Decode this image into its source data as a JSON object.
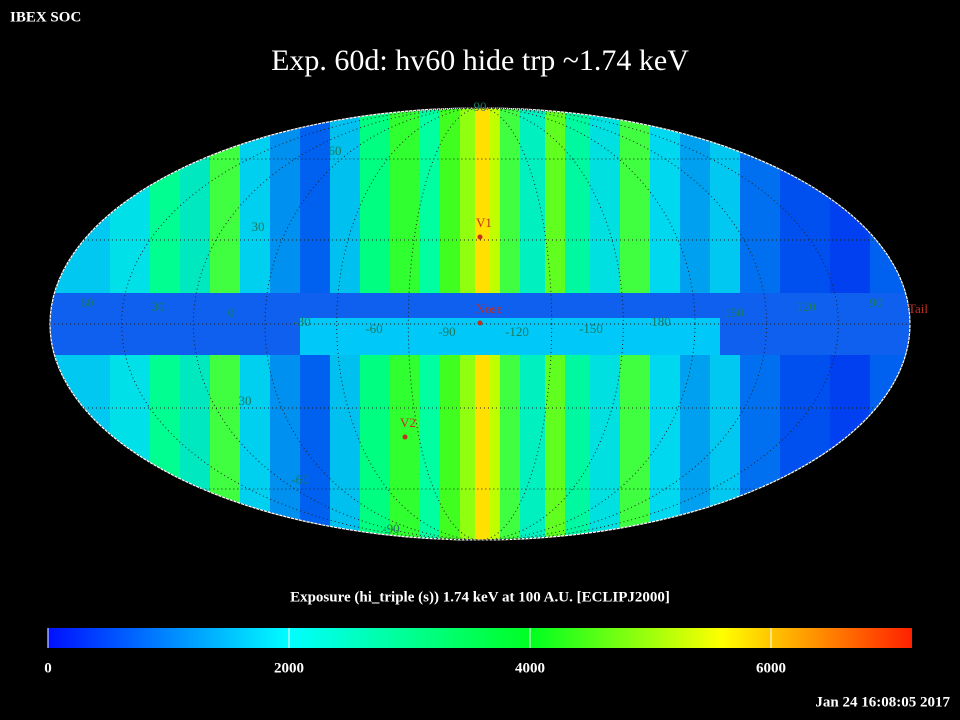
{
  "header": {
    "org": "IBEX SOC",
    "title": "Exp.   60d: hv60 hide trp ~1.74 keV",
    "timestamp": "Jan 24 16:08:05 2017"
  },
  "map": {
    "grid_labels": [
      "90",
      "60",
      "30",
      "60",
      "30",
      "0",
      "-30",
      "-60",
      "-90",
      "-120",
      "-150",
      "180",
      "150",
      "120",
      "90",
      "30",
      "-60",
      "-90"
    ],
    "markers": [
      "V1",
      "Nose",
      "V2",
      "Tail"
    ]
  },
  "colorbar": {
    "label": "Exposure (hi_triple (s))  1.74 keV at 100 A.U. [ECLIPJ2000]",
    "range": [
      0,
      7170
    ],
    "ticks": [
      0,
      2000,
      4000,
      6000
    ]
  }
}
